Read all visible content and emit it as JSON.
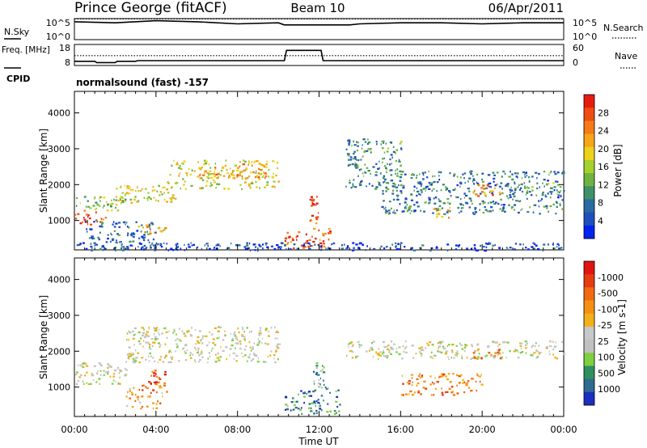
{
  "header": {
    "station": "Prince George (fitACF)",
    "beam": "Beam 10",
    "date": "06/Apr/2011"
  },
  "chart_data": [
    {
      "type": "line",
      "left_label": "N.Sky",
      "right_label": "N.Search",
      "left_ticks": [
        "10^5",
        "10^0"
      ],
      "right_ticks": [
        "10^5",
        "10^0"
      ],
      "series": [
        {
          "name": "N.Sky",
          "style": "solid",
          "x": [
            0,
            2,
            4,
            6,
            8,
            10,
            10.3,
            12,
            13.5,
            14,
            16,
            18,
            20,
            22,
            24
          ],
          "y": [
            0.85,
            0.8,
            0.9,
            0.85,
            0.75,
            0.8,
            0.7,
            0.7,
            0.7,
            0.75,
            0.8,
            0.8,
            0.75,
            0.8,
            0.8
          ]
        },
        {
          "name": "N.Search",
          "style": "dotted",
          "x": [
            0,
            24
          ],
          "y": [
            0.98,
            0.98
          ]
        }
      ]
    },
    {
      "type": "line",
      "left_label": "Freq. [MHz]",
      "right_label": "Nave",
      "sub_label": "CPID",
      "left_ticks": [
        "18",
        "8"
      ],
      "right_ticks": [
        "60",
        "0"
      ],
      "series": [
        {
          "name": "Freq.",
          "style": "solid",
          "x": [
            0,
            1,
            1.1,
            2,
            2.1,
            3,
            3.1,
            10.3,
            10.4,
            12.1,
            12.2,
            24
          ],
          "y": [
            10,
            10,
            9.4,
            9.4,
            10,
            10,
            10.3,
            10.3,
            15.2,
            15.2,
            10.3,
            10.3
          ]
        },
        {
          "name": "Nave",
          "style": "dotted",
          "x": [
            0,
            24
          ],
          "y": [
            12.7,
            12.7
          ]
        }
      ]
    },
    {
      "type": "heatmap",
      "mode_text": "normalsound (fast) -157",
      "ylabel": "Slant Range [km]",
      "yticks": [
        1000,
        2000,
        3000,
        4000
      ],
      "ylim": [
        180,
        4600
      ],
      "colorbar": {
        "label": "Power [dB]",
        "ticks": [
          4,
          8,
          12,
          16,
          20,
          24,
          28
        ],
        "colors": [
          "#0022ee",
          "#1f4fbf",
          "#2a6aa0",
          "#3f9068",
          "#6fb244",
          "#a6d02c",
          "#ecd21a",
          "#f7a51a",
          "#f47b16",
          "#ef4e12",
          "#e51d10"
        ]
      },
      "regions": [
        {
          "x": 0,
          "x2": 1.5,
          "y": 900,
          "y2": 1300,
          "level": 0.85
        },
        {
          "x": 0,
          "x2": 2.5,
          "y": 1300,
          "y2": 1700,
          "level": 0.45
        },
        {
          "x": 0.5,
          "x2": 4,
          "y": 200,
          "y2": 1000,
          "level": 0.2
        },
        {
          "x": 3,
          "x2": 4.5,
          "y": 600,
          "y2": 900,
          "level": 0.6
        },
        {
          "x": 2,
          "x2": 5,
          "y": 1500,
          "y2": 2000,
          "level": 0.55
        },
        {
          "x": 4.5,
          "x2": 10,
          "y": 1900,
          "y2": 2700,
          "level": 0.55
        },
        {
          "x": 6,
          "x2": 9.5,
          "y": 2200,
          "y2": 2600,
          "level": 0.7
        },
        {
          "x": 10.3,
          "x2": 12.5,
          "y": 250,
          "y2": 800,
          "level": 0.85
        },
        {
          "x": 11.5,
          "x2": 12.2,
          "y": 900,
          "y2": 1700,
          "level": 0.9
        },
        {
          "x": 13.3,
          "x2": 16,
          "y": 1900,
          "y2": 3300,
          "level": 0.3
        },
        {
          "x": 15,
          "x2": 24,
          "y": 1200,
          "y2": 2400,
          "level": 0.25
        },
        {
          "x": 17.5,
          "x2": 18.5,
          "y": 1100,
          "y2": 1400,
          "level": 0.65
        },
        {
          "x": 19.5,
          "x2": 21,
          "y": 1700,
          "y2": 2100,
          "level": 0.75
        },
        {
          "x": 22,
          "x2": 24,
          "y": 1700,
          "y2": 2100,
          "level": 0.4
        },
        {
          "x": 0,
          "x2": 24,
          "y": 180,
          "y2": 400,
          "level": 0.12
        }
      ]
    },
    {
      "type": "heatmap",
      "ylabel": "Slant Range [km]",
      "yticks": [
        1000,
        2000,
        3000,
        4000
      ],
      "ylim": [
        180,
        4600
      ],
      "xlabel": "Time UT",
      "xticks": [
        "00:00",
        "04:00",
        "08:00",
        "12:00",
        "16:00",
        "20:00",
        "00:00"
      ],
      "colorbar": {
        "label": "Velocity [m s-1]",
        "ticks": [
          "1000",
          "500",
          "100",
          "25",
          "-25",
          "-100",
          "-500",
          "-1000"
        ],
        "colors": [
          "#1a2fbf",
          "#2f6a8f",
          "#2f8f5f",
          "#7fcf3f",
          "#c0c0c0",
          "#c8c8c8",
          "#f2b01a",
          "#f59015",
          "#f26a12",
          "#e63d10",
          "#e01510"
        ]
      },
      "regions": [
        {
          "x": 0,
          "x2": 2.5,
          "y": 1100,
          "y2": 1700,
          "level": 0.45
        },
        {
          "x": 2.5,
          "x2": 10,
          "y": 1700,
          "y2": 2700,
          "level": 0.45
        },
        {
          "x": 2.5,
          "x2": 4.5,
          "y": 400,
          "y2": 1100,
          "level": 0.7
        },
        {
          "x": 3.5,
          "x2": 4.5,
          "y": 1100,
          "y2": 1500,
          "level": 0.85
        },
        {
          "x": 10.3,
          "x2": 13,
          "y": 250,
          "y2": 1000,
          "level": 0.2
        },
        {
          "x": 11.7,
          "x2": 12.3,
          "y": 900,
          "y2": 1700,
          "level": 0.25
        },
        {
          "x": 13.3,
          "x2": 24,
          "y": 1800,
          "y2": 2300,
          "level": 0.45
        },
        {
          "x": 16,
          "x2": 20,
          "y": 800,
          "y2": 1400,
          "level": 0.72
        },
        {
          "x": 19.5,
          "x2": 21,
          "y": 1800,
          "y2": 2100,
          "level": 0.78
        }
      ]
    }
  ]
}
